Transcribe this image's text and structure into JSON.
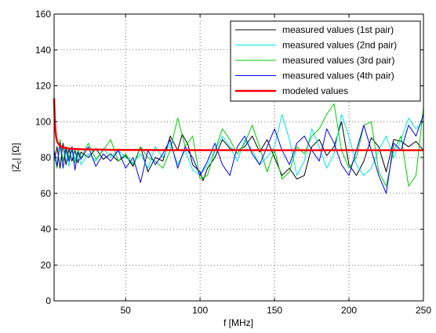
{
  "chart_data": {
    "type": "line",
    "xlabel": "f [MHz]",
    "ylabel_parts": {
      "before": "|Z",
      "sub": "c",
      "after": "| [Ω]"
    },
    "xlim": [
      2,
      250
    ],
    "ylim": [
      0,
      160
    ],
    "x_ticks": [
      50,
      100,
      150,
      200,
      250
    ],
    "y_ticks": [
      0,
      20,
      40,
      60,
      80,
      100,
      120,
      140,
      160
    ],
    "grid": true,
    "legend_position": "top-right",
    "series": [
      {
        "name": "measured values (1st pair)",
        "color": "#000000",
        "x": [
          2,
          4,
          6,
          8,
          10,
          12,
          14,
          16,
          18,
          20,
          25,
          30,
          35,
          40,
          45,
          50,
          55,
          60,
          65,
          70,
          75,
          80,
          85,
          88,
          92,
          95,
          100,
          102,
          105,
          110,
          115,
          120,
          125,
          130,
          135,
          140,
          145,
          150,
          155,
          160,
          165,
          170,
          175,
          180,
          185,
          190,
          195,
          200,
          205,
          210,
          215,
          220,
          225,
          230,
          235,
          240,
          245,
          250
        ],
        "y": [
          78,
          86,
          74,
          88,
          76,
          85,
          78,
          84,
          77,
          83,
          80,
          85,
          79,
          82,
          78,
          81,
          75,
          86,
          72,
          80,
          78,
          92,
          84,
          93,
          87,
          76,
          72,
          67,
          74,
          80,
          90,
          85,
          84,
          86,
          92,
          83,
          90,
          80,
          70,
          74,
          68,
          70,
          86,
          90,
          81,
          86,
          100,
          76,
          70,
          78,
          91,
          86,
          72,
          90,
          89,
          86,
          89,
          84
        ]
      },
      {
        "name": "measured values (2nd pair)",
        "color": "#00e5e5",
        "x": [
          2,
          4,
          6,
          8,
          10,
          12,
          14,
          16,
          18,
          20,
          25,
          30,
          35,
          40,
          45,
          50,
          55,
          60,
          65,
          70,
          75,
          80,
          85,
          90,
          95,
          100,
          105,
          110,
          115,
          120,
          125,
          130,
          135,
          140,
          145,
          150,
          155,
          160,
          165,
          170,
          175,
          180,
          185,
          190,
          195,
          200,
          205,
          210,
          215,
          220,
          225,
          230,
          235,
          240,
          245,
          250
        ],
        "y": [
          80,
          76,
          88,
          78,
          84,
          75,
          86,
          79,
          83,
          76,
          82,
          78,
          85,
          80,
          84,
          80,
          77,
          82,
          74,
          86,
          80,
          88,
          76,
          84,
          73,
          70,
          76,
          84,
          92,
          86,
          78,
          90,
          84,
          76,
          80,
          86,
          104,
          90,
          70,
          78,
          96,
          86,
          74,
          82,
          104,
          92,
          76,
          70,
          74,
          84,
          92,
          80,
          90,
          102,
          96,
          100
        ]
      },
      {
        "name": "measured values (3rd pair)",
        "color": "#00cc00",
        "x": [
          2,
          4,
          6,
          8,
          10,
          12,
          14,
          16,
          18,
          20,
          25,
          30,
          35,
          40,
          45,
          50,
          55,
          60,
          65,
          70,
          75,
          80,
          85,
          90,
          95,
          100,
          105,
          110,
          115,
          120,
          125,
          130,
          135,
          140,
          145,
          150,
          155,
          160,
          165,
          170,
          175,
          180,
          185,
          190,
          195,
          200,
          205,
          210,
          215,
          220,
          225,
          230,
          235,
          240,
          245,
          250
        ],
        "y": [
          82,
          74,
          90,
          78,
          86,
          80,
          84,
          77,
          85,
          80,
          88,
          79,
          84,
          90,
          78,
          82,
          76,
          86,
          80,
          78,
          74,
          84,
          102,
          86,
          92,
          68,
          70,
          84,
          96,
          90,
          82,
          88,
          98,
          86,
          72,
          84,
          68,
          72,
          86,
          82,
          92,
          96,
          104,
          110,
          84,
          74,
          80,
          98,
          100,
          72,
          64,
          84,
          92,
          64,
          70,
          108
        ]
      },
      {
        "name": "measured values (4th pair)",
        "color": "#0000ff",
        "x": [
          2,
          4,
          6,
          8,
          10,
          12,
          14,
          16,
          18,
          20,
          25,
          30,
          35,
          40,
          45,
          50,
          55,
          60,
          65,
          70,
          75,
          80,
          85,
          90,
          95,
          100,
          105,
          110,
          115,
          120,
          125,
          130,
          135,
          140,
          145,
          150,
          155,
          160,
          165,
          170,
          175,
          180,
          185,
          190,
          195,
          200,
          205,
          210,
          215,
          220,
          225,
          230,
          235,
          240,
          245,
          250
        ],
        "y": [
          84,
          75,
          88,
          74,
          85,
          78,
          86,
          73,
          83,
          79,
          86,
          75,
          82,
          78,
          84,
          74,
          80,
          66,
          84,
          76,
          82,
          90,
          74,
          86,
          80,
          70,
          78,
          88,
          76,
          70,
          86,
          92,
          82,
          76,
          86,
          96,
          84,
          76,
          88,
          92,
          84,
          78,
          96,
          88,
          76,
          70,
          84,
          98,
          84,
          70,
          60,
          88,
          84,
          98,
          92,
          104
        ]
      },
      {
        "name": "modeled values",
        "color": "#ff0000",
        "x": [
          2,
          2.5,
          3,
          3.5,
          4,
          5,
          6,
          7,
          8,
          10,
          12,
          15,
          20,
          25,
          30,
          40,
          50,
          60,
          80,
          100,
          150,
          200,
          250
        ],
        "y": [
          113,
          100,
          94,
          91,
          89,
          87.5,
          86.5,
          86,
          85.7,
          85.3,
          85,
          84.8,
          84.6,
          84.5,
          84.4,
          84.3,
          84.2,
          84.2,
          84.1,
          84.1,
          84,
          84,
          84
        ]
      }
    ]
  }
}
